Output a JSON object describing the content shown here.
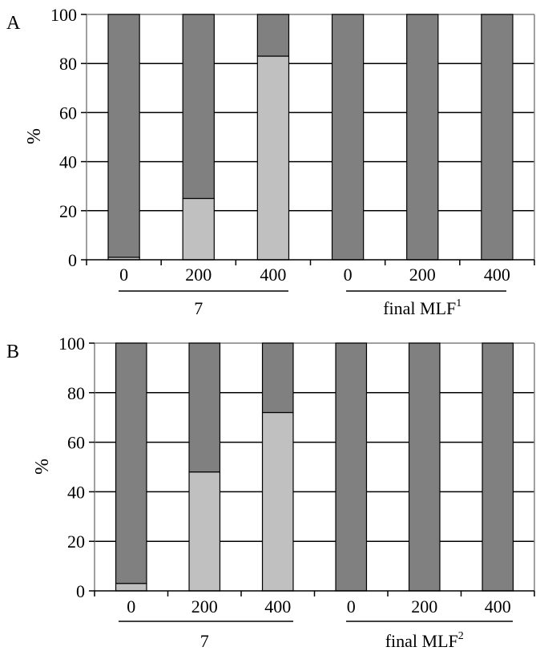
{
  "colors": {
    "dark_segment": "#808080",
    "light_segment": "#c0c0c0",
    "gridline": "#000000",
    "axis": "#808080"
  },
  "chart_data": [
    {
      "type": "bar",
      "stacked": true,
      "panel_label": "A",
      "ylabel": "%",
      "ylim": [
        0,
        100
      ],
      "yticks": [
        0,
        20,
        40,
        60,
        80,
        100
      ],
      "grid": true,
      "categories": [
        "0",
        "200",
        "400",
        "0",
        "200",
        "400"
      ],
      "groups": [
        {
          "label": "7",
          "sup": "",
          "start": 0,
          "end": 2
        },
        {
          "label": "final MLF",
          "sup": "1",
          "start": 3,
          "end": 5
        }
      ],
      "series": [
        {
          "values": [
            1,
            25,
            83,
            0,
            0,
            0
          ],
          "color": "#c0c0c0"
        },
        {
          "values": [
            99,
            75,
            17,
            100,
            100,
            100
          ],
          "color": "#808080"
        }
      ]
    },
    {
      "type": "bar",
      "stacked": true,
      "panel_label": "B",
      "ylabel": "%",
      "ylim": [
        0,
        100
      ],
      "yticks": [
        0,
        20,
        40,
        60,
        80,
        100
      ],
      "grid": true,
      "categories": [
        "0",
        "200",
        "400",
        "0",
        "200",
        "400"
      ],
      "groups": [
        {
          "label": "7",
          "sup": "",
          "start": 0,
          "end": 2
        },
        {
          "label": "final MLF",
          "sup": "2",
          "start": 3,
          "end": 5
        }
      ],
      "series": [
        {
          "values": [
            3,
            48,
            72,
            0,
            0,
            0
          ],
          "color": "#c0c0c0"
        },
        {
          "values": [
            97,
            52,
            28,
            100,
            100,
            100
          ],
          "color": "#808080"
        }
      ]
    }
  ]
}
